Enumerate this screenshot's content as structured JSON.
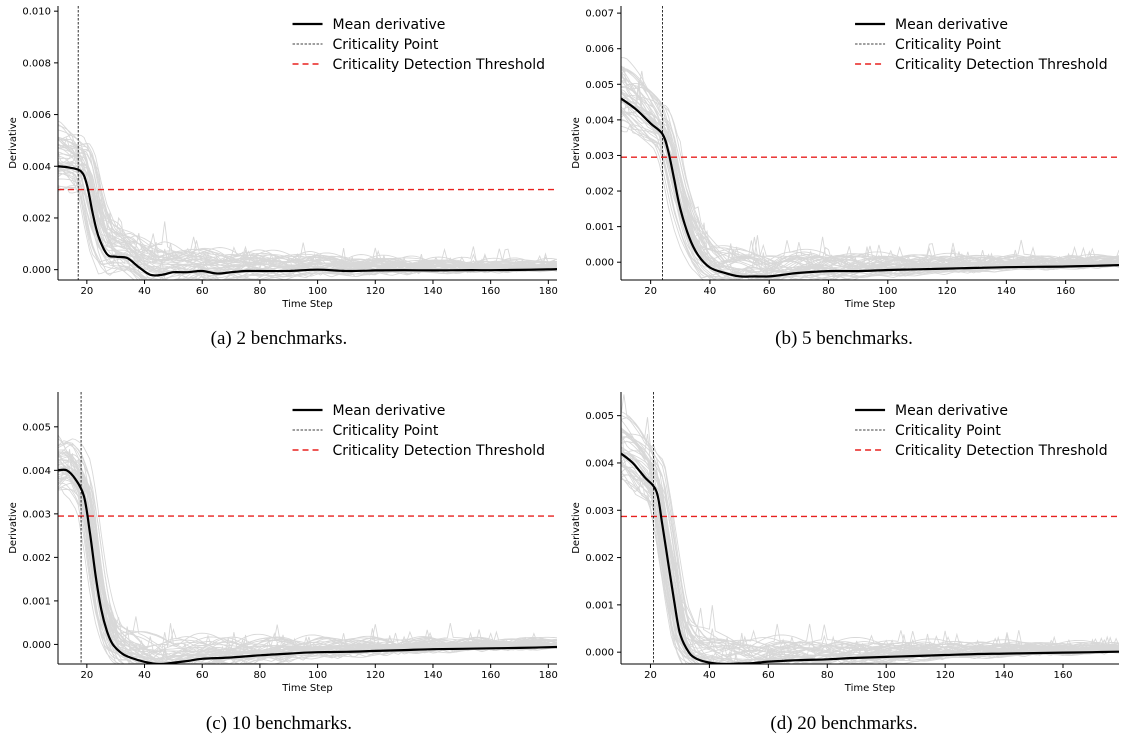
{
  "figure": {
    "legend_labels": {
      "mean": "Mean derivative",
      "criticality": "Criticality Point",
      "threshold": "Criticality Detection Threshold"
    },
    "colors": {
      "mean": "#000000",
      "criticality": "#000000",
      "threshold": "#e8211f",
      "individual": "#d8d8d8"
    }
  },
  "chart_data": [
    {
      "type": "line",
      "caption": "(a) 2 benchmarks.",
      "xlabel": "Time Step",
      "ylabel": "Derivative",
      "xlim": [
        10,
        183
      ],
      "ylim": [
        -0.0004,
        0.0102
      ],
      "xticks": [
        20,
        40,
        60,
        80,
        100,
        120,
        140,
        160,
        180
      ],
      "yticks": [
        0.0,
        0.002,
        0.004,
        0.006,
        0.008,
        0.01
      ],
      "ytick_labels": [
        "0.000",
        "0.002",
        "0.004",
        "0.006",
        "0.008",
        "0.010"
      ],
      "criticality_point": 17,
      "threshold": 0.0031,
      "legend_position": "top-right",
      "series": [
        {
          "name": "Mean derivative",
          "x": [
            10,
            14,
            18,
            20,
            22,
            24,
            27,
            30,
            34,
            38,
            42,
            46,
            50,
            55,
            60,
            65,
            70,
            75,
            80,
            90,
            100,
            110,
            120,
            130,
            140,
            150,
            160,
            170,
            180,
            183
          ],
          "y": [
            0.004,
            0.00395,
            0.0038,
            0.0033,
            0.0022,
            0.0013,
            0.0006,
            0.0005,
            0.00045,
            0.0001,
            -0.0002,
            -0.0002,
            -0.0001,
            -0.0001,
            -5e-05,
            -0.00015,
            -0.0001,
            -5e-05,
            -5e-05,
            -5e-05,
            0.0,
            -5e-05,
            -3e-05,
            -2e-05,
            -3e-05,
            -2e-05,
            -2e-05,
            -1e-05,
            1e-05,
            2e-05
          ]
        }
      ]
    },
    {
      "type": "line",
      "caption": "(b) 5 benchmarks.",
      "xlabel": "Time Step",
      "ylabel": "Derivative",
      "xlim": [
        10,
        178
      ],
      "ylim": [
        -0.0005,
        0.0072
      ],
      "xticks": [
        20,
        40,
        60,
        80,
        100,
        120,
        140,
        160
      ],
      "yticks": [
        0.0,
        0.001,
        0.002,
        0.003,
        0.004,
        0.005,
        0.006,
        0.007
      ],
      "ytick_labels": [
        "0.000",
        "0.001",
        "0.002",
        "0.003",
        "0.004",
        "0.005",
        "0.006",
        "0.007"
      ],
      "criticality_point": 24,
      "threshold": 0.00295,
      "legend_position": "top-right",
      "series": [
        {
          "name": "Mean derivative",
          "x": [
            10,
            15,
            20,
            24,
            26,
            28,
            30,
            33,
            36,
            40,
            45,
            50,
            55,
            60,
            65,
            70,
            80,
            90,
            100,
            110,
            120,
            130,
            140,
            150,
            160,
            170,
            178
          ],
          "y": [
            0.0046,
            0.0043,
            0.0039,
            0.0036,
            0.0031,
            0.0023,
            0.0015,
            0.0007,
            0.0002,
            -0.00015,
            -0.0003,
            -0.0004,
            -0.0004,
            -0.0004,
            -0.00035,
            -0.0003,
            -0.00025,
            -0.00025,
            -0.00022,
            -0.0002,
            -0.00018,
            -0.00016,
            -0.00014,
            -0.00013,
            -0.00012,
            -0.0001,
            -8e-05
          ]
        }
      ]
    },
    {
      "type": "line",
      "caption": "(c) 10 benchmarks.",
      "xlabel": "Time Step",
      "ylabel": "Derivative",
      "xlim": [
        10,
        183
      ],
      "ylim": [
        -0.00045,
        0.0058
      ],
      "xticks": [
        20,
        40,
        60,
        80,
        100,
        120,
        140,
        160,
        180
      ],
      "yticks": [
        0.0,
        0.001,
        0.002,
        0.003,
        0.004,
        0.005
      ],
      "ytick_labels": [
        "0.000",
        "0.001",
        "0.002",
        "0.003",
        "0.004",
        "0.005"
      ],
      "criticality_point": 18,
      "threshold": 0.00295,
      "legend_position": "top-right",
      "series": [
        {
          "name": "Mean derivative",
          "x": [
            10,
            13,
            16,
            19,
            21,
            23,
            25,
            27,
            29,
            32,
            35,
            40,
            45,
            50,
            55,
            60,
            70,
            80,
            90,
            100,
            110,
            120,
            130,
            140,
            150,
            160,
            170,
            183
          ],
          "y": [
            0.004,
            0.004,
            0.0038,
            0.0034,
            0.0026,
            0.0016,
            0.0008,
            0.0003,
            0.0,
            -0.0002,
            -0.0003,
            -0.0004,
            -0.00045,
            -0.00042,
            -0.00038,
            -0.00033,
            -0.0003,
            -0.00025,
            -0.00021,
            -0.00018,
            -0.00017,
            -0.00015,
            -0.00013,
            -0.00011,
            -0.0001,
            -9e-05,
            -8e-05,
            -6e-05
          ]
        }
      ]
    },
    {
      "type": "line",
      "caption": "(d) 20 benchmarks.",
      "xlabel": "Time Step",
      "ylabel": "Derivative",
      "xlim": [
        10,
        179
      ],
      "ylim": [
        -0.00025,
        0.0055
      ],
      "xticks": [
        20,
        40,
        60,
        80,
        100,
        120,
        140,
        160
      ],
      "yticks": [
        0.0,
        0.001,
        0.002,
        0.003,
        0.004,
        0.005
      ],
      "ytick_labels": [
        "0.000",
        "0.001",
        "0.002",
        "0.003",
        "0.004",
        "0.005"
      ],
      "criticality_point": 21,
      "threshold": 0.00287,
      "legend_position": "top-right",
      "series": [
        {
          "name": "Mean derivative",
          "x": [
            10,
            14,
            18,
            22,
            24,
            26,
            28,
            30,
            33,
            36,
            40,
            45,
            50,
            55,
            60,
            70,
            80,
            90,
            100,
            110,
            120,
            130,
            140,
            150,
            160,
            170,
            179
          ],
          "y": [
            0.0042,
            0.004,
            0.0037,
            0.0034,
            0.0027,
            0.0019,
            0.0011,
            0.0004,
            0.0,
            -0.00015,
            -0.00022,
            -0.00025,
            -0.00024,
            -0.00023,
            -0.0002,
            -0.00017,
            -0.00015,
            -0.00012,
            -0.0001,
            -8e-05,
            -6e-05,
            -4e-05,
            -3e-05,
            -2e-05,
            -1e-05,
            0.0,
            1e-05
          ]
        }
      ]
    }
  ]
}
